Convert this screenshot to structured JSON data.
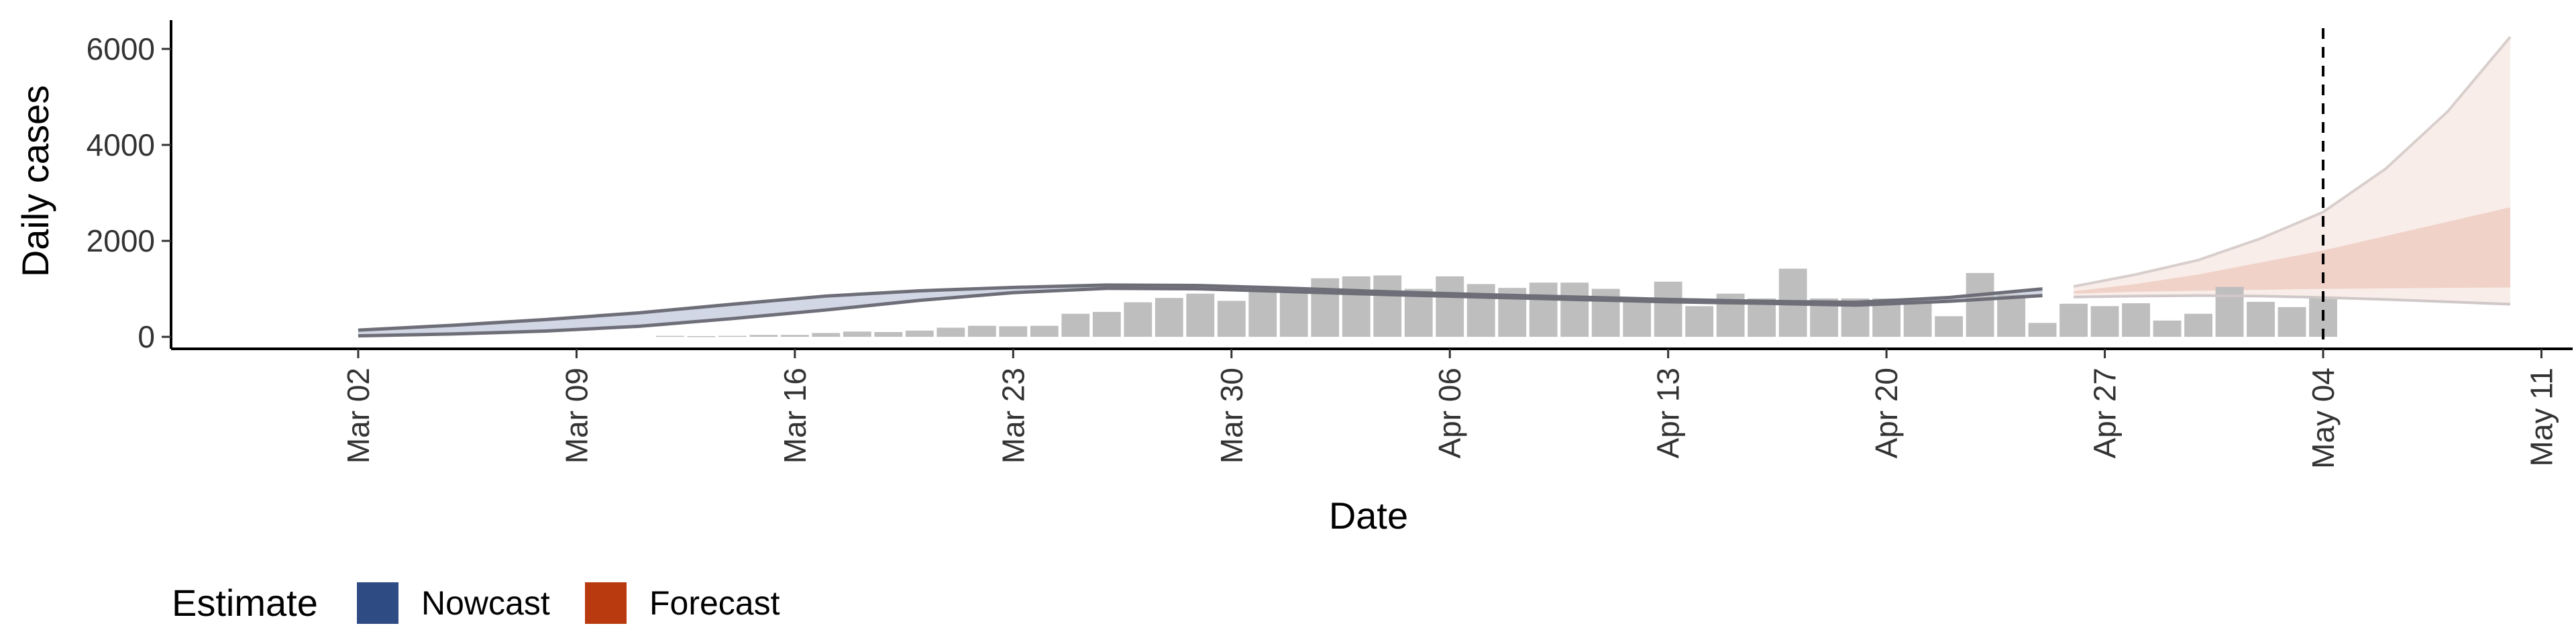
{
  "chart_data": {
    "type": "bar",
    "xlabel": "Date",
    "ylabel": "Daily cases",
    "x_range": [
      "2020-02-25",
      "2020-05-12"
    ],
    "ylim": [
      -250,
      6600
    ],
    "y_ticks": [
      0,
      2000,
      4000,
      6000
    ],
    "x_ticks": [
      {
        "date": "2020-03-02",
        "label": "Mar 02"
      },
      {
        "date": "2020-03-09",
        "label": "Mar 09"
      },
      {
        "date": "2020-03-16",
        "label": "Mar 16"
      },
      {
        "date": "2020-03-23",
        "label": "Mar 23"
      },
      {
        "date": "2020-03-30",
        "label": "Mar 30"
      },
      {
        "date": "2020-04-06",
        "label": "Apr 06"
      },
      {
        "date": "2020-04-13",
        "label": "Apr 13"
      },
      {
        "date": "2020-04-20",
        "label": "Apr 20"
      },
      {
        "date": "2020-04-27",
        "label": "Apr 27"
      },
      {
        "date": "2020-05-04",
        "label": "May 04"
      },
      {
        "date": "2020-05-11",
        "label": "May 11"
      }
    ],
    "grid": false,
    "vline": {
      "date": "2020-05-04",
      "style": "dashed"
    },
    "bars": {
      "dates": [
        "2020-03-12",
        "2020-03-13",
        "2020-03-14",
        "2020-03-15",
        "2020-03-16",
        "2020-03-17",
        "2020-03-18",
        "2020-03-19",
        "2020-03-20",
        "2020-03-21",
        "2020-03-22",
        "2020-03-23",
        "2020-03-24",
        "2020-03-25",
        "2020-03-26",
        "2020-03-27",
        "2020-03-28",
        "2020-03-29",
        "2020-03-30",
        "2020-03-31",
        "2020-04-01",
        "2020-04-02",
        "2020-04-03",
        "2020-04-04",
        "2020-04-05",
        "2020-04-06",
        "2020-04-07",
        "2020-04-08",
        "2020-04-09",
        "2020-04-10",
        "2020-04-11",
        "2020-04-12",
        "2020-04-13",
        "2020-04-14",
        "2020-04-15",
        "2020-04-16",
        "2020-04-17",
        "2020-04-18",
        "2020-04-19",
        "2020-04-20",
        "2020-04-21",
        "2020-04-22",
        "2020-04-23",
        "2020-04-24",
        "2020-04-25",
        "2020-04-26",
        "2020-04-27",
        "2020-04-28",
        "2020-04-29",
        "2020-04-30",
        "2020-05-01",
        "2020-05-02",
        "2020-05-03",
        "2020-05-04"
      ],
      "values": [
        20,
        15,
        20,
        40,
        40,
        80,
        110,
        100,
        130,
        190,
        230,
        220,
        230,
        480,
        520,
        720,
        810,
        900,
        750,
        1000,
        1030,
        1220,
        1260,
        1280,
        1000,
        1260,
        1100,
        1020,
        1130,
        1130,
        1000,
        820,
        1150,
        640,
        900,
        800,
        1420,
        800,
        800,
        800,
        760,
        430,
        1330,
        880,
        290,
        690,
        640,
        700,
        340,
        480,
        1040,
        730,
        620,
        800
      ],
      "color": "#bebebe"
    },
    "series": [
      {
        "estimate": "Nowcast",
        "color": "#2f4b84",
        "dates": [
          "2020-03-02",
          "2020-03-05",
          "2020-03-08",
          "2020-03-11",
          "2020-03-14",
          "2020-03-17",
          "2020-03-20",
          "2020-03-23",
          "2020-03-26",
          "2020-03-29",
          "2020-04-01",
          "2020-04-04",
          "2020-04-07",
          "2020-04-10",
          "2020-04-13",
          "2020-04-16",
          "2020-04-19",
          "2020-04-22",
          "2020-04-25"
        ],
        "lower": [
          20,
          60,
          120,
          220,
          380,
          560,
          760,
          920,
          1010,
          1000,
          940,
          880,
          830,
          780,
          730,
          700,
          660,
          740,
          860
        ],
        "upper": [
          140,
          240,
          360,
          500,
          680,
          850,
          960,
          1030,
          1080,
          1070,
          1010,
          940,
          880,
          830,
          780,
          740,
          720,
          820,
          1000
        ]
      },
      {
        "estimate": "Forecast",
        "color": "#b93a0e",
        "dates": [
          "2020-04-26",
          "2020-04-28",
          "2020-04-30",
          "2020-05-02",
          "2020-05-04",
          "2020-05-06",
          "2020-05-08",
          "2020-05-10"
        ],
        "lower_90": [
          830,
          850,
          860,
          850,
          820,
          780,
          730,
          680
        ],
        "upper_90": [
          1050,
          1300,
          1600,
          2050,
          2600,
          3500,
          4700,
          6250
        ],
        "lower_50": [
          900,
          940,
          960,
          980,
          1000,
          1010,
          1020,
          1030
        ],
        "upper_50": [
          950,
          1100,
          1300,
          1550,
          1800,
          2100,
          2400,
          2700
        ]
      }
    ]
  },
  "legend": {
    "title": "Estimate",
    "items": [
      {
        "label": "Nowcast",
        "color": "#2f4b84"
      },
      {
        "label": "Forecast",
        "color": "#b93a0e"
      }
    ]
  }
}
